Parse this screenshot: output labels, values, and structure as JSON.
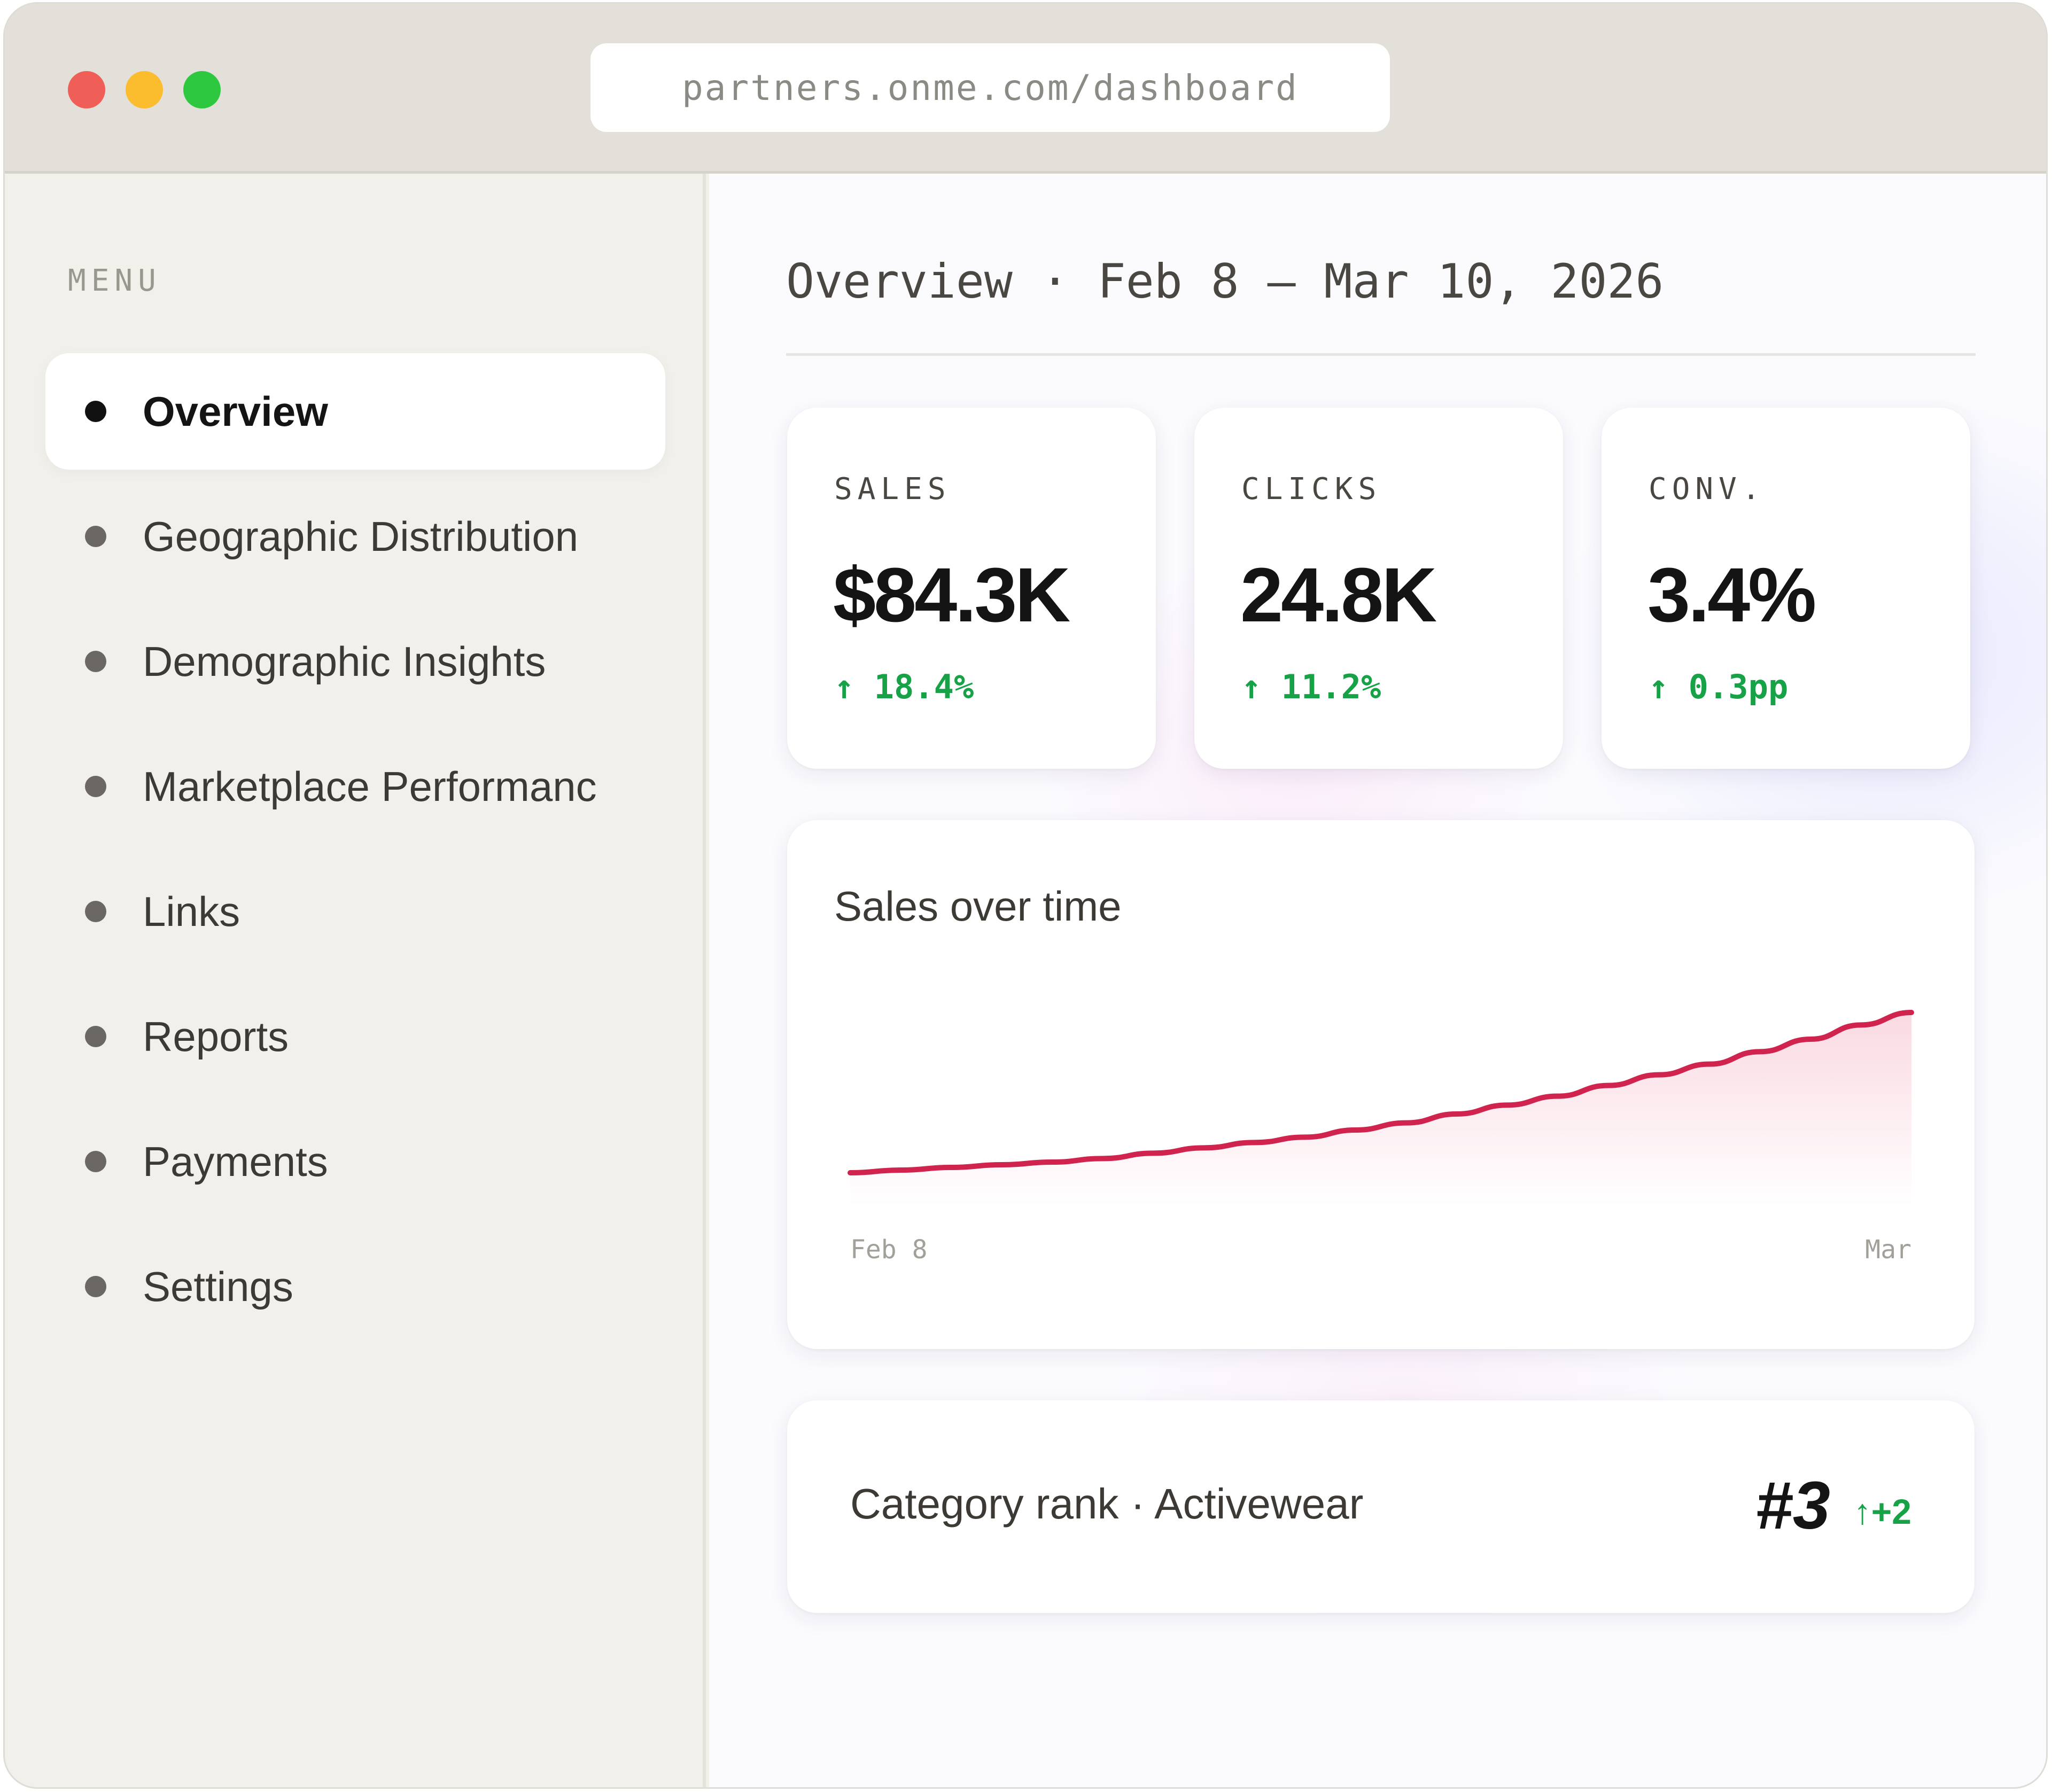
{
  "browser": {
    "url": "partners.onme.com/dashboard"
  },
  "sidebar": {
    "menu_label": "MENU",
    "items": [
      {
        "label": "Overview",
        "active": true
      },
      {
        "label": "Geographic Distribution",
        "active": false
      },
      {
        "label": "Demographic Insights",
        "active": false
      },
      {
        "label": "Marketplace Performanc",
        "active": false
      },
      {
        "label": "Links",
        "active": false
      },
      {
        "label": "Reports",
        "active": false
      },
      {
        "label": "Payments",
        "active": false
      },
      {
        "label": "Settings",
        "active": false
      }
    ]
  },
  "main": {
    "title": "Overview · Feb 8 – Mar 10, 2026",
    "kpis": [
      {
        "label": "SALES",
        "value": "$84.3K",
        "delta": "↑ 18.4%"
      },
      {
        "label": "CLICKS",
        "value": "24.8K",
        "delta": "↑ 11.2%"
      },
      {
        "label": "CONV.",
        "value": "3.4%",
        "delta": "↑ 0.3pp"
      }
    ],
    "chart": {
      "title": "Sales over time"
    },
    "rank": {
      "label": "Category rank · Activewear",
      "value": "#3",
      "delta": "↑+2"
    }
  },
  "colors": {
    "accent_line": "#d0234e",
    "positive": "#18a247",
    "traffic_red": "#f05f57",
    "traffic_yellow": "#fbbc2e",
    "traffic_green": "#2ec840"
  },
  "chart_data": {
    "type": "area",
    "title": "Sales over time",
    "x_tick_labels": [
      "Feb 8",
      "Mar"
    ],
    "series": [
      {
        "values": [
          10,
          11.5,
          13,
          14.5,
          16,
          18,
          21,
          24,
          27,
          30,
          34,
          38,
          43,
          48,
          53,
          59,
          65,
          71,
          78,
          85,
          93,
          100
        ]
      }
    ],
    "grid": false,
    "legend": "none"
  }
}
